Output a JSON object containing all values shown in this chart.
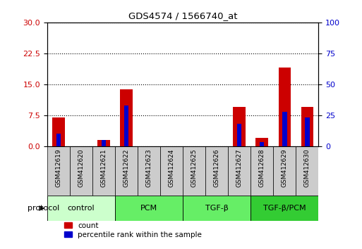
{
  "title": "GDS4574 / 1566740_at",
  "samples": [
    "GSM412619",
    "GSM412620",
    "GSM412621",
    "GSM412622",
    "GSM412623",
    "GSM412624",
    "GSM412625",
    "GSM412626",
    "GSM412627",
    "GSM412628",
    "GSM412629",
    "GSM412630"
  ],
  "count_values": [
    7.0,
    0.0,
    1.5,
    13.8,
    0.0,
    0.0,
    0.0,
    0.0,
    9.5,
    2.0,
    19.0,
    9.5
  ],
  "percentile_values": [
    10.0,
    0.0,
    5.0,
    33.0,
    0.0,
    0.0,
    0.0,
    0.0,
    18.0,
    3.5,
    28.0,
    23.0
  ],
  "groups": [
    {
      "label": "control",
      "start": 0,
      "end": 3,
      "color": "#ccffcc"
    },
    {
      "label": "PCM",
      "start": 3,
      "end": 6,
      "color": "#66ee66"
    },
    {
      "label": "TGF-β",
      "start": 6,
      "end": 9,
      "color": "#66ee66"
    },
    {
      "label": "TGF-β/PCM",
      "start": 9,
      "end": 12,
      "color": "#33cc33"
    }
  ],
  "ylim_left": [
    0,
    30
  ],
  "ylim_right": [
    0,
    100
  ],
  "yticks_left": [
    0,
    7.5,
    15,
    22.5,
    30
  ],
  "yticks_right": [
    0,
    25,
    50,
    75,
    100
  ],
  "bar_color_red": "#cc0000",
  "bar_color_blue": "#0000cc",
  "bar_width": 0.55,
  "blue_bar_width": 0.2,
  "tick_label_color_left": "#cc0000",
  "tick_label_color_right": "#0000cc",
  "protocol_label": "protocol",
  "legend_count": "count",
  "legend_percentile": "percentile rank within the sample"
}
